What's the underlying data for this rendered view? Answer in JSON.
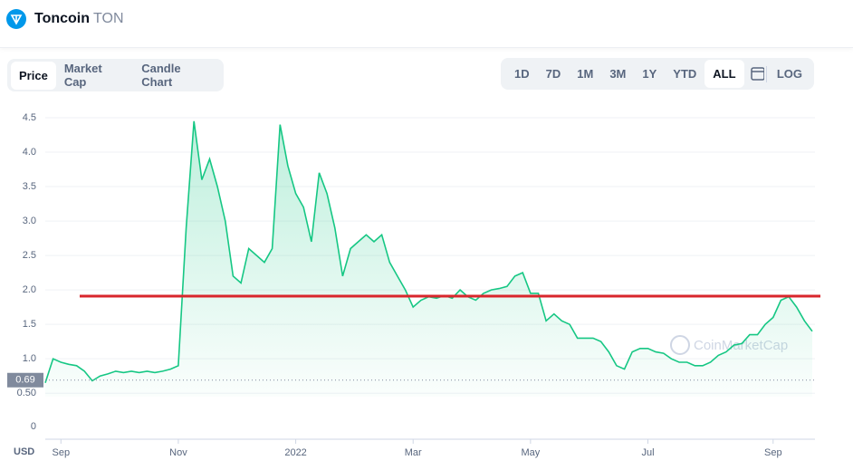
{
  "header": {
    "name": "Toncoin",
    "symbol": "TON"
  },
  "tabs": [
    "Price",
    "Market Cap",
    "Candle Chart"
  ],
  "ranges": [
    "1D",
    "7D",
    "1M",
    "3M",
    "1Y",
    "YTD",
    "ALL",
    "LOG"
  ],
  "chart_data": {
    "type": "line",
    "currency": "USD",
    "watermark": "CoinMarketCap",
    "categories": [
      null,
      null,
      "Sep",
      null,
      null,
      null,
      null,
      null,
      null,
      null,
      null,
      null,
      null,
      null,
      null,
      null,
      null,
      "Nov",
      null,
      null,
      null,
      null,
      null,
      null,
      null,
      null,
      null,
      null,
      null,
      null,
      null,
      null,
      "2022",
      null,
      null,
      null,
      null,
      null,
      null,
      null,
      null,
      null,
      null,
      null,
      null,
      null,
      null,
      "Mar",
      null,
      null,
      null,
      null,
      null,
      null,
      null,
      null,
      null,
      null,
      null,
      null,
      null,
      null,
      "May",
      null,
      null,
      null,
      null,
      null,
      null,
      null,
      null,
      null,
      null,
      null,
      null,
      null,
      null,
      "Jul",
      null,
      null,
      null,
      null,
      null,
      null,
      null,
      null,
      null,
      null,
      null,
      null,
      null,
      null,
      null,
      "Sep",
      null,
      null,
      null,
      null,
      null
    ],
    "series": [
      {
        "name": "Price",
        "color": "#16c784",
        "values": [
          0.65,
          1.0,
          0.95,
          0.92,
          0.9,
          0.82,
          0.68,
          0.75,
          0.78,
          0.82,
          0.8,
          0.82,
          0.8,
          0.82,
          0.8,
          0.82,
          0.85,
          0.9,
          2.9,
          4.45,
          3.6,
          3.9,
          3.5,
          3.0,
          2.2,
          2.1,
          2.6,
          2.5,
          2.4,
          2.6,
          4.4,
          3.8,
          3.4,
          3.2,
          2.7,
          3.7,
          3.4,
          2.9,
          2.2,
          2.6,
          2.7,
          2.8,
          2.7,
          2.8,
          2.4,
          2.2,
          2.0,
          1.75,
          1.85,
          1.9,
          1.88,
          1.92,
          1.88,
          2.0,
          1.9,
          1.85,
          1.95,
          2.0,
          2.02,
          2.05,
          2.2,
          2.25,
          1.95,
          1.95,
          1.55,
          1.65,
          1.55,
          1.5,
          1.3,
          1.3,
          1.3,
          1.25,
          1.1,
          0.9,
          0.85,
          1.1,
          1.15,
          1.15,
          1.1,
          1.08,
          1.0,
          0.95,
          0.95,
          0.9,
          0.9,
          0.95,
          1.05,
          1.1,
          1.2,
          1.22,
          1.35,
          1.35,
          1.5,
          1.6,
          1.85,
          1.9,
          1.75,
          1.55,
          1.4
        ]
      }
    ],
    "ylim": [
      0.45,
      4.75
    ],
    "yticks": [
      {
        "value": 0.5,
        "label": "0.50"
      },
      {
        "value": 1,
        "label": "1.0"
      },
      1.5,
      {
        "value": 2,
        "label": "2.0"
      },
      2.5,
      {
        "value": 3,
        "label": "3.0"
      },
      3.5,
      {
        "value": 4,
        "label": "4.0"
      },
      4.5
    ],
    "grid": true,
    "start_price": {
      "value": 0.69,
      "label": "0.69"
    },
    "reference_line": {
      "value": 1.91,
      "color": "#d9262c"
    },
    "volume_yticks": [
      0
    ]
  }
}
